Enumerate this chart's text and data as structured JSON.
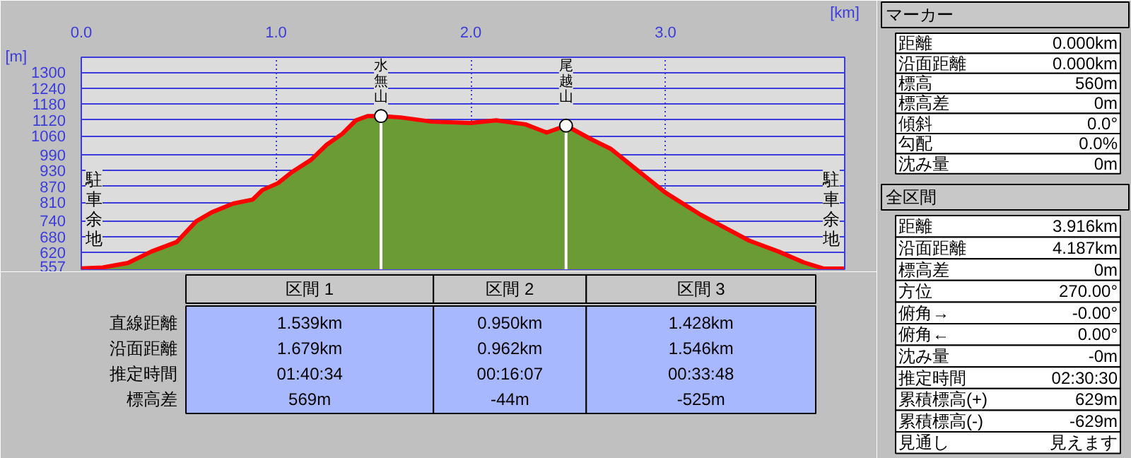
{
  "chart_data": {
    "type": "area",
    "xlabel": "[km]",
    "ylabel": "[m]",
    "x": [
      0,
      0.11,
      0.24,
      0.36,
      0.49,
      0.59,
      0.67,
      0.78,
      0.88,
      0.93,
      1.01,
      1.08,
      1.18,
      1.26,
      1.34,
      1.41,
      1.47,
      1.539,
      1.64,
      1.8,
      2.0,
      2.13,
      2.28,
      2.39,
      2.489,
      2.62,
      2.72,
      2.85,
      3.0,
      3.18,
      3.31,
      3.43,
      3.58,
      3.71,
      3.81,
      3.916
    ],
    "series": [
      {
        "color": "#6b9b34",
        "values": [
          560,
          564,
          581,
          624,
          660,
          738,
          772,
          805,
          820,
          856,
          882,
          923,
          970,
          1027,
          1068,
          1119,
          1135,
          1135,
          1130,
          1114,
          1109,
          1119,
          1104,
          1073,
          1099,
          1047,
          1011,
          934,
          846,
          763,
          712,
          665,
          624,
          583,
          560,
          560
        ]
      }
    ],
    "xlim": [
      0,
      3.92
    ],
    "ylim": [
      557,
      1357
    ],
    "xticks": [
      {
        "value": 0,
        "label": "0.0"
      },
      {
        "value": 1,
        "label": "1.0"
      },
      {
        "value": 2,
        "label": "2.0"
      },
      {
        "value": 3,
        "label": "3.0"
      }
    ],
    "yticks": [
      557,
      620,
      680,
      740,
      810,
      870,
      930,
      990,
      1060,
      1120,
      1180,
      1240,
      1300
    ],
    "grid": true,
    "ref_lines": [
      {
        "axis": "x",
        "value": 1.539,
        "label": "水無山",
        "color": "#ffffff"
      },
      {
        "axis": "x",
        "value": 2.489,
        "label": "尾越山",
        "color": "#ffffff"
      }
    ],
    "annotations": [
      {
        "text": "駐車余地",
        "x": 0,
        "y": 560
      },
      {
        "text": "駐車余地",
        "x": 3.916,
        "y": 560
      },
      "区間 1",
      "区間 2",
      "区間 3",
      "直線距離",
      "1.539km",
      "0.950km",
      "1.428km",
      "沿面距離",
      "1.679km",
      "0.962km",
      "1.546km",
      "推定時間",
      "01:40:34",
      "00:16:07",
      "00:33:48",
      "標高差",
      "569m",
      "-44m",
      "-525m",
      "マーカー",
      "距離",
      "0.000km",
      "沿面距離",
      "0.000km",
      "標高",
      "560m",
      "標高差",
      "0m",
      "傾斜",
      "0.0°",
      "勾配",
      "0.0%",
      "沈み量",
      "0m",
      "全区間",
      "距離",
      "3.916km",
      "沿面距離",
      "4.187km",
      "標高差",
      "0m",
      "方位",
      "270.00°",
      "俯角→",
      "-0.00°",
      "俯角←",
      "0.00°",
      "沈み量",
      "-0m",
      "推定時間",
      "02:30:30",
      "累積標高(+)",
      "629m",
      "累積標高(-)",
      "-629m",
      "見通し",
      "見えます"
    ]
  }
}
